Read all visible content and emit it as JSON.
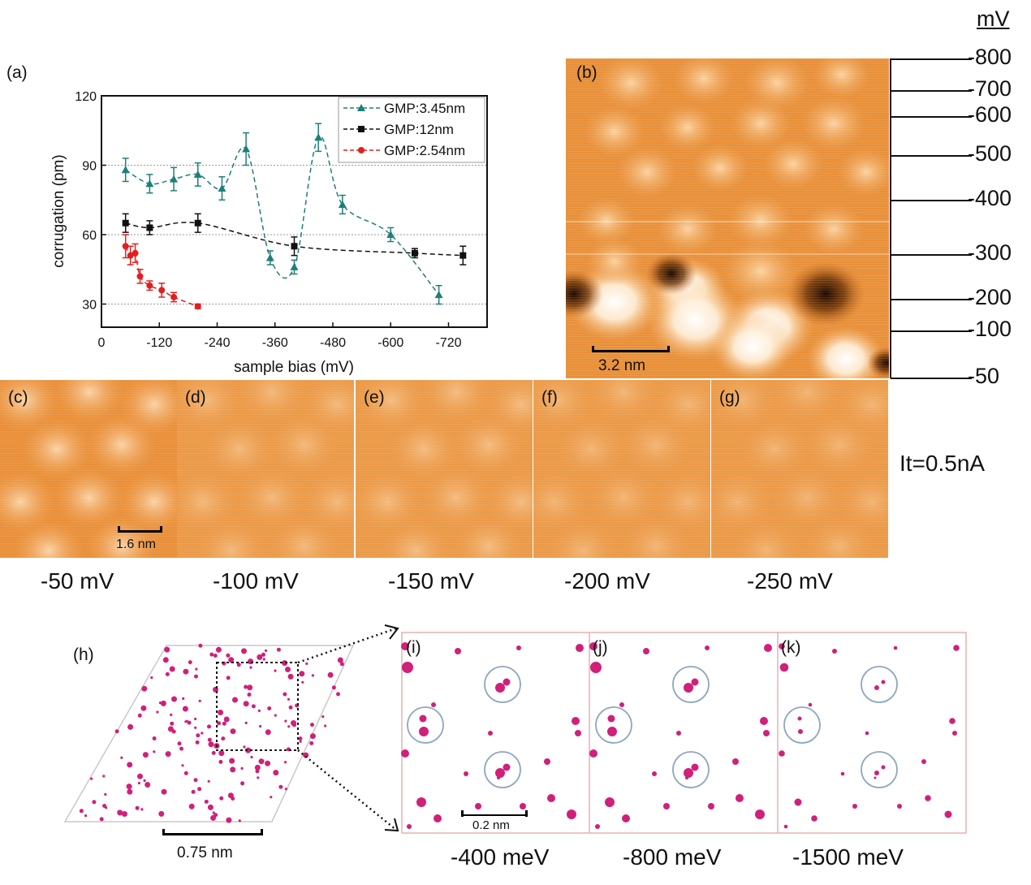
{
  "units_header": "mV",
  "panel_labels": {
    "a": "(a)",
    "b": "(b)",
    "c": "(c)",
    "d": "(d)",
    "e": "(e)",
    "f": "(f)",
    "g": "(g)",
    "h": "(h)",
    "i": "(i)",
    "j": "(j)",
    "k": "(k)"
  },
  "scale_bars": {
    "b": "3.2 nm",
    "c": "1.6 nm",
    "h": "0.75 nm",
    "i": "0.2 nm"
  },
  "bias_ticks": [
    "-800",
    "-700",
    "-600",
    "-500",
    "-400",
    "-300",
    "-200",
    "-100",
    "-50"
  ],
  "current_label": "It=0.5nA",
  "stm_captions": [
    "-50 mV",
    "-100 mV",
    "-150 mV",
    "-200 mV",
    "-250 mV"
  ],
  "sim_captions": [
    "-400 meV",
    "-800 meV",
    "-1500 meV"
  ],
  "colors": {
    "stm_base": "#e8903a",
    "stm_bright": "#fff6e8",
    "stm_dark": "#2a1200",
    "atom": "#d0207a",
    "circle": "#8fa8bf"
  },
  "chart_data": {
    "type": "line",
    "xlabel": "sample bias (mV)",
    "ylabel": "corrugation (pm)",
    "xlim": [
      0,
      -800
    ],
    "ylim": [
      20,
      120
    ],
    "x_ticks": [
      "0",
      "-120",
      "-240",
      "-360",
      "-480",
      "-600",
      "-720"
    ],
    "y_ticks": [
      "30",
      "60",
      "90",
      "120"
    ],
    "grid_y": [
      30,
      60,
      90
    ],
    "legend_position": "top-right",
    "series": [
      {
        "name": "GMP:3.45nm",
        "color": "#1d7f79",
        "marker": "triangle",
        "x": [
          -50,
          -100,
          -150,
          -200,
          -250,
          -300,
          -350,
          -400,
          -450,
          -500,
          -600,
          -700
        ],
        "y": [
          88,
          82,
          84,
          86,
          80,
          97,
          50,
          46,
          102,
          73,
          60,
          34
        ],
        "err": [
          5,
          4,
          5,
          5,
          5,
          7,
          3,
          3,
          6,
          4,
          3,
          4
        ]
      },
      {
        "name": "GMP:12nm",
        "color": "#111111",
        "marker": "square",
        "x": [
          -50,
          -100,
          -200,
          -400,
          -650,
          -750
        ],
        "y": [
          65,
          63,
          65,
          55,
          52,
          51
        ],
        "err": [
          4,
          3,
          4,
          4,
          2,
          4
        ]
      },
      {
        "name": "GMP:2.54nm",
        "color": "#e02020",
        "marker": "circle",
        "x": [
          -50,
          -60,
          -70,
          -80,
          -100,
          -125,
          -150,
          -200
        ],
        "y": [
          55,
          51,
          52,
          42,
          38,
          36,
          33,
          29
        ],
        "err": [
          5,
          4,
          4,
          3,
          2,
          3,
          2,
          1
        ]
      }
    ]
  }
}
